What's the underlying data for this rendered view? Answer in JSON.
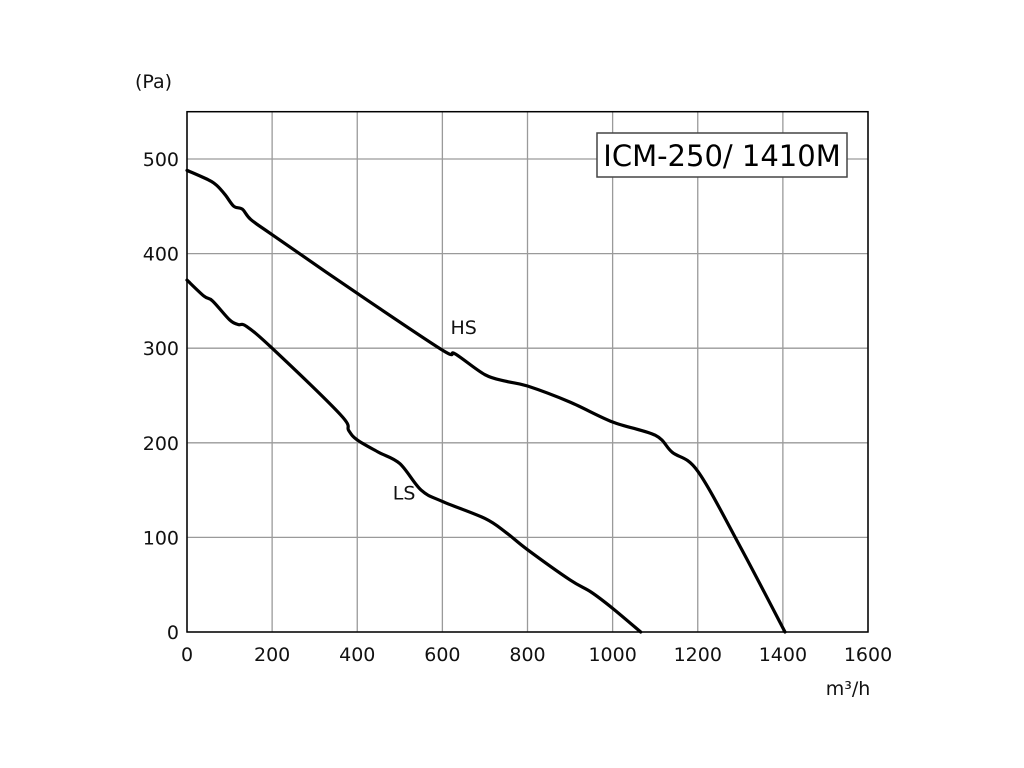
{
  "chart_data": {
    "type": "line",
    "title": "ICM-250/ 1410M",
    "xlabel": "m³/h",
    "ylabel": "(Pa)",
    "xlim": [
      0,
      1600
    ],
    "ylim": [
      0,
      550
    ],
    "grid": true,
    "x_ticks": [
      0,
      200,
      400,
      600,
      800,
      1000,
      1200,
      1400,
      1600
    ],
    "y_ticks": [
      0,
      100,
      200,
      300,
      400,
      500
    ],
    "series": [
      {
        "name": "HS",
        "label_at": [
          650,
          315
        ],
        "x": [
          0,
          50,
          70,
          90,
          110,
          130,
          150,
          200,
          400,
          600,
          630,
          700,
          750,
          800,
          900,
          1000,
          1100,
          1140,
          1200,
          1300,
          1405
        ],
        "y": [
          488,
          478,
          472,
          462,
          450,
          447,
          436,
          420,
          358,
          298,
          294,
          272,
          265,
          260,
          243,
          222,
          208,
          190,
          170,
          90,
          0
        ]
      },
      {
        "name": "LS",
        "label_at": [
          510,
          140
        ],
        "x": [
          0,
          40,
          60,
          100,
          120,
          140,
          200,
          360,
          380,
          400,
          450,
          500,
          550,
          600,
          700,
          750,
          800,
          900,
          950,
          1000,
          1066
        ],
        "y": [
          372,
          355,
          350,
          330,
          325,
          323,
          300,
          230,
          213,
          203,
          190,
          178,
          150,
          138,
          120,
          105,
          87,
          55,
          42,
          25,
          0
        ]
      }
    ]
  }
}
